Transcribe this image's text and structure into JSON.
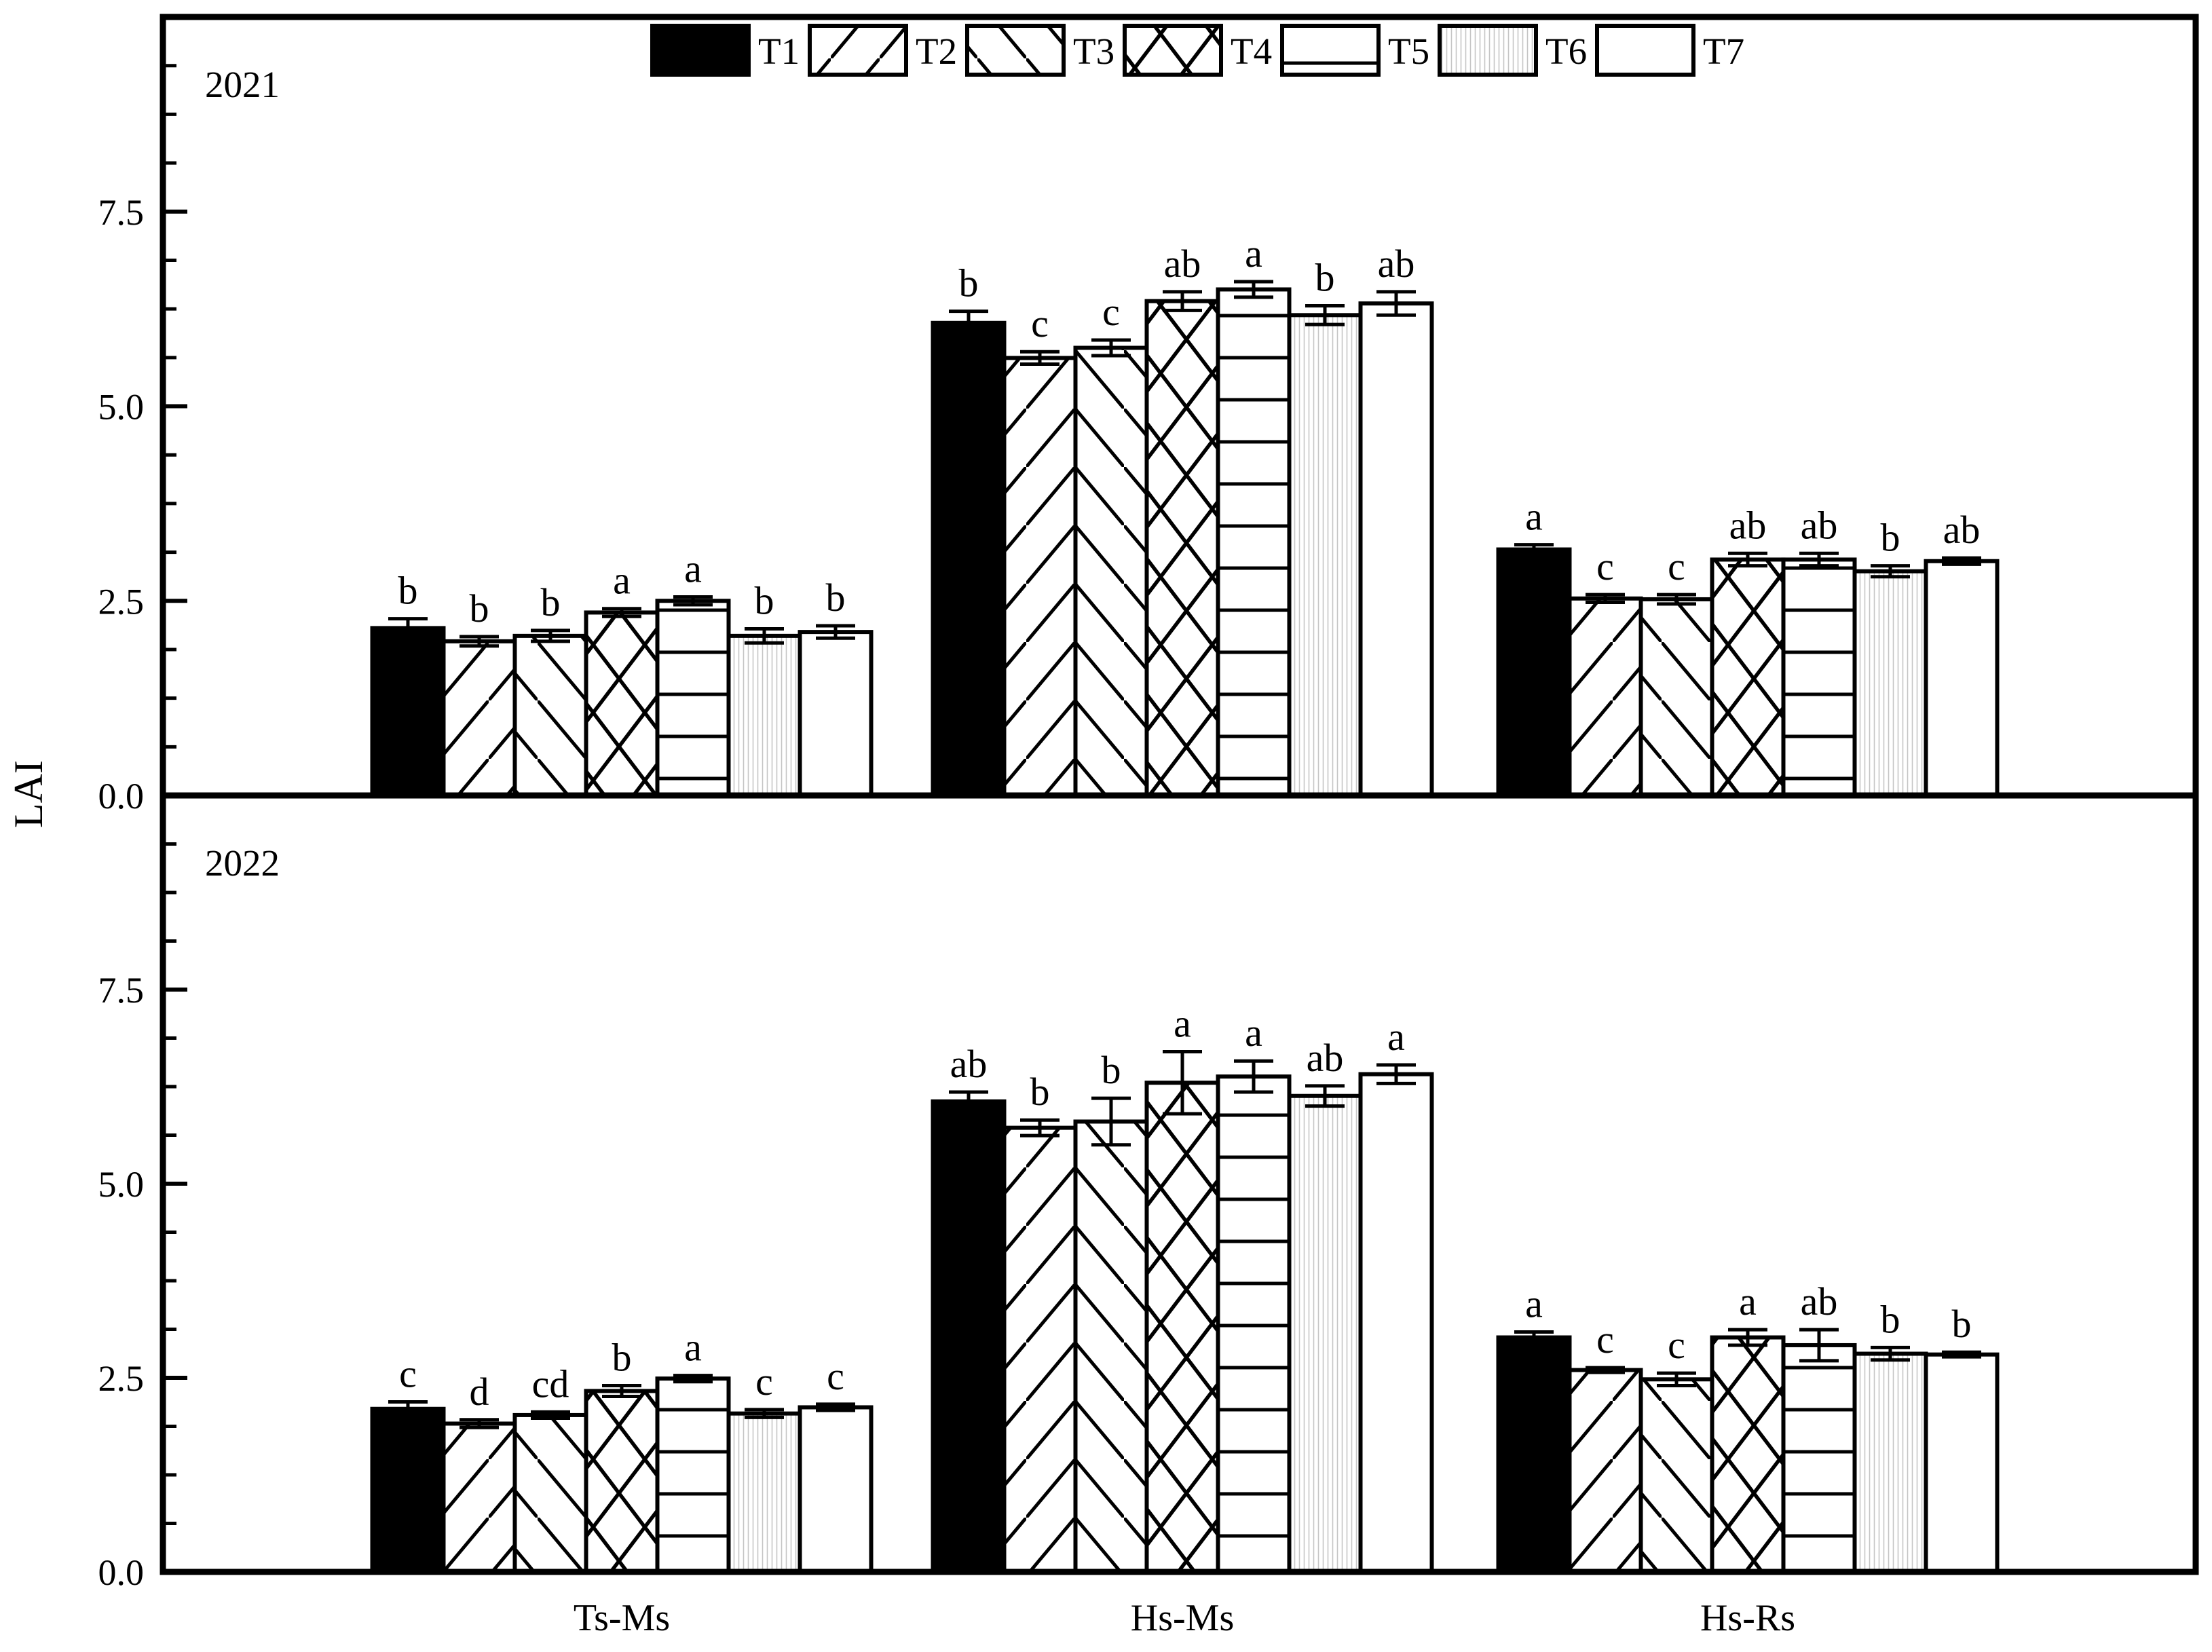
{
  "figure": {
    "y_axis_label": "LAI",
    "panel_labels": [
      "2021",
      "2022"
    ],
    "categories": [
      "Ts-Ms",
      "Hs-Ms",
      "Hs-Rs"
    ],
    "legend_labels": [
      "T1",
      "T2",
      "T3",
      "T4",
      "T5",
      "T6",
      "T7"
    ],
    "colors": {
      "ink": "#000000",
      "paper": "#ffffff",
      "fine_hatch_gray": "#c5c5c5"
    }
  },
  "chart_data": [
    {
      "type": "bar",
      "title": "2021",
      "categories": [
        "Ts-Ms",
        "Hs-Ms",
        "Hs-Rs"
      ],
      "xlabel": "",
      "ylabel": "LAI",
      "ylim": [
        0,
        10
      ],
      "yticks": [
        0,
        2.5,
        5,
        7.5
      ],
      "ytick_labels": [
        "0.0",
        "2.5",
        "5.0",
        "7.5"
      ],
      "minor_tick_step": 0.625,
      "grid": false,
      "legend_position": "top-center",
      "series": [
        {
          "name": "T1",
          "fill": "solid-black",
          "values": [
            2.15,
            6.07,
            3.16
          ],
          "errors": [
            0.12,
            0.15,
            0.06
          ],
          "letters": [
            "b",
            "b",
            "a"
          ]
        },
        {
          "name": "T2",
          "fill": "diagonal-forward",
          "values": [
            1.98,
            5.62,
            2.53
          ],
          "errors": [
            0.06,
            0.08,
            0.05
          ],
          "letters": [
            "b",
            "c",
            "c"
          ]
        },
        {
          "name": "T3",
          "fill": "diagonal-back",
          "values": [
            2.05,
            5.75,
            2.52
          ],
          "errors": [
            0.07,
            0.1,
            0.06
          ],
          "letters": [
            "b",
            "c",
            "c"
          ]
        },
        {
          "name": "T4",
          "fill": "crosshatch",
          "values": [
            2.35,
            6.35,
            3.03
          ],
          "errors": [
            0.05,
            0.12,
            0.08
          ],
          "letters": [
            "a",
            "ab",
            "ab"
          ]
        },
        {
          "name": "T5",
          "fill": "horizontal-lines",
          "values": [
            2.5,
            6.5,
            3.03
          ],
          "errors": [
            0.05,
            0.1,
            0.08
          ],
          "letters": [
            "a",
            "a",
            "ab"
          ]
        },
        {
          "name": "T6",
          "fill": "vertical-fine-gray",
          "values": [
            2.05,
            6.17,
            2.88
          ],
          "errors": [
            0.09,
            0.12,
            0.07
          ],
          "letters": [
            "b",
            "b",
            "b"
          ]
        },
        {
          "name": "T7",
          "fill": "white",
          "values": [
            2.1,
            6.32,
            3.01
          ],
          "errors": [
            0.08,
            0.15,
            0.04
          ],
          "letters": [
            "b",
            "ab",
            "ab"
          ]
        }
      ]
    },
    {
      "type": "bar",
      "title": "2022",
      "categories": [
        "Ts-Ms",
        "Hs-Ms",
        "Hs-Rs"
      ],
      "xlabel": "",
      "ylabel": "LAI",
      "ylim": [
        0,
        10
      ],
      "yticks": [
        0,
        2.5,
        5,
        7.5
      ],
      "ytick_labels": [
        "0.0",
        "2.5",
        "5.0",
        "7.5"
      ],
      "minor_tick_step": 0.625,
      "grid": false,
      "legend_position": "none",
      "series": [
        {
          "name": "T1",
          "fill": "solid-black",
          "values": [
            2.1,
            6.06,
            3.02
          ],
          "errors": [
            0.09,
            0.12,
            0.07
          ],
          "letters": [
            "c",
            "ab",
            "a"
          ]
        },
        {
          "name": "T2",
          "fill": "diagonal-forward",
          "values": [
            1.91,
            5.72,
            2.6
          ],
          "errors": [
            0.05,
            0.1,
            0.03
          ],
          "letters": [
            "d",
            "b",
            "c"
          ]
        },
        {
          "name": "T3",
          "fill": "diagonal-back",
          "values": [
            2.02,
            5.8,
            2.48
          ],
          "errors": [
            0.04,
            0.3,
            0.08
          ],
          "letters": [
            "cd",
            "b",
            "c"
          ]
        },
        {
          "name": "T4",
          "fill": "crosshatch",
          "values": [
            2.33,
            6.3,
            3.02
          ],
          "errors": [
            0.07,
            0.4,
            0.1
          ],
          "letters": [
            "b",
            "a",
            "a"
          ]
        },
        {
          "name": "T5",
          "fill": "horizontal-lines",
          "values": [
            2.49,
            6.38,
            2.92
          ],
          "errors": [
            0.04,
            0.2,
            0.2
          ],
          "letters": [
            "a",
            "a",
            "ab"
          ]
        },
        {
          "name": "T6",
          "fill": "vertical-fine-gray",
          "values": [
            2.04,
            6.13,
            2.81
          ],
          "errors": [
            0.05,
            0.13,
            0.08
          ],
          "letters": [
            "c",
            "ab",
            "b"
          ]
        },
        {
          "name": "T7",
          "fill": "white",
          "values": [
            2.12,
            6.41,
            2.8
          ],
          "errors": [
            0.04,
            0.12,
            0.03
          ],
          "letters": [
            "c",
            "a",
            "b"
          ]
        }
      ]
    }
  ]
}
